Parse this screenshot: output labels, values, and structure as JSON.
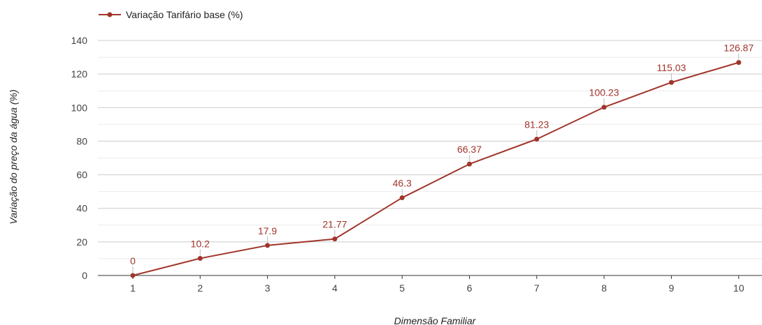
{
  "chart_data": {
    "type": "line",
    "xlabel": "Dimensão Familiar",
    "ylabel": "Variação do preço da água (%)",
    "x": [
      1,
      2,
      3,
      4,
      5,
      6,
      7,
      8,
      9,
      10
    ],
    "x_tick_labels": [
      "1",
      "2",
      "3",
      "4",
      "5",
      "6",
      "7",
      "8",
      "9",
      "10"
    ],
    "ylim": [
      0,
      140
    ],
    "y_ticks": [
      0,
      20,
      40,
      60,
      80,
      100,
      120,
      140
    ],
    "y_tick_labels": [
      "0",
      "20",
      "40",
      "60",
      "80",
      "100",
      "120",
      "140"
    ],
    "grid": true,
    "legend_position": "top-left",
    "series": [
      {
        "name": "Variação Tarifário base (%)",
        "color": "#a0352b",
        "values": [
          0,
          10.2,
          17.9,
          21.77,
          46.3,
          66.37,
          81.23,
          100.23,
          115.03,
          126.87
        ],
        "data_labels": [
          "0",
          "10.2",
          "17.9",
          "21.77",
          "46.3",
          "66.37",
          "81.23",
          "100.23",
          "115.03",
          "126.87"
        ]
      }
    ]
  }
}
